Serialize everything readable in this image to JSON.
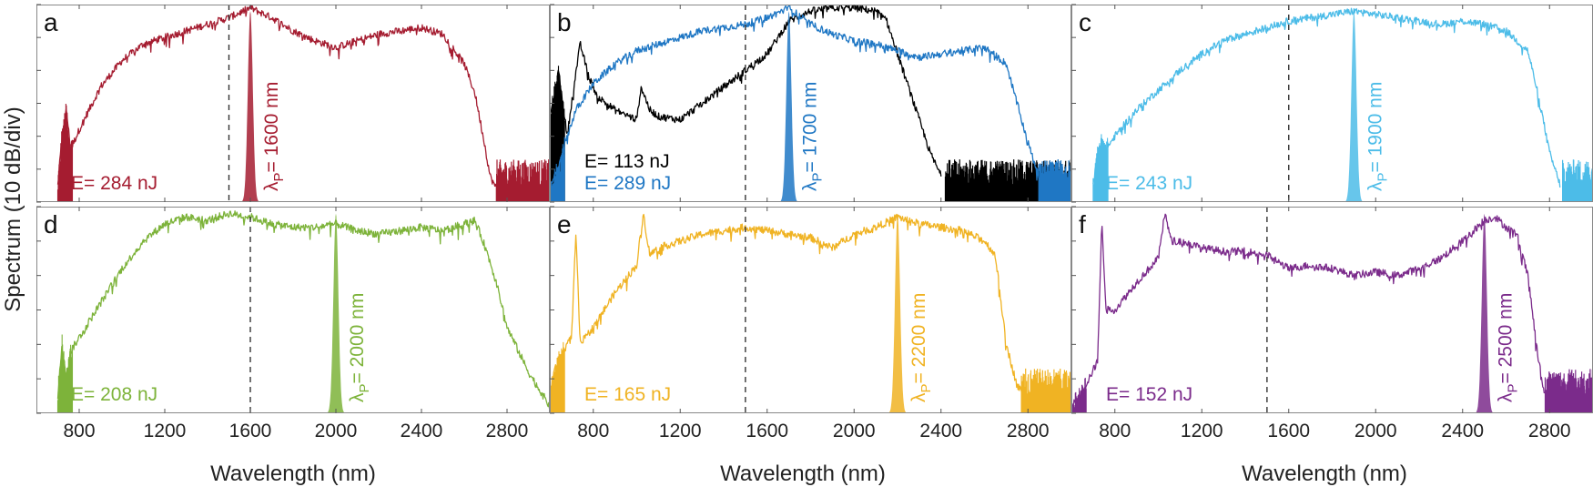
{
  "figure": {
    "ylabel": "Spectrum (10 dB/div)",
    "xlabel": "Wavelength (nm)"
  },
  "chart_data": [
    {
      "type": "line",
      "panel": "a",
      "color": "#a51c30",
      "pump_nm": 1600,
      "pump_label_prefix": "λ",
      "pump_label_sub": "P",
      "pump_label_value": "= 1600 nm",
      "dashed_line_nm": 1500,
      "energy_labels": [
        {
          "text": "E= 284 nJ",
          "color": "#a51c30"
        }
      ],
      "xlim": [
        600,
        3000
      ],
      "xticks": [
        800,
        1200,
        1600,
        2000,
        2400,
        2800
      ],
      "ylim": [
        -60,
        0
      ],
      "series": [
        {
          "name": "E= 284 nJ",
          "color": "#a51c30",
          "noise_floor_from_nm": 2750,
          "x": [
            700,
            720,
            740,
            760,
            800,
            900,
            1000,
            1100,
            1200,
            1300,
            1400,
            1500,
            1600,
            1700,
            1800,
            1900,
            2000,
            2100,
            2200,
            2300,
            2400,
            2500,
            2600,
            2650,
            2700,
            2720,
            2750
          ],
          "y": [
            -55,
            -40,
            -32,
            -44,
            -38,
            -25,
            -17,
            -12,
            -10,
            -8,
            -6,
            -4,
            -1,
            -4,
            -8,
            -11,
            -13,
            -11,
            -9,
            -8,
            -7,
            -9,
            -18,
            -27,
            -44,
            -52,
            -56
          ]
        }
      ]
    },
    {
      "type": "line",
      "panel": "b",
      "color": "#1f77c4",
      "pump_nm": 1700,
      "pump_label_prefix": "λ",
      "pump_label_sub": "P",
      "pump_label_value": "= 1700 nm",
      "dashed_line_nm": 1500,
      "energy_labels": [
        {
          "text": "E= 113 nJ",
          "color": "#000000"
        },
        {
          "text": "E= 289 nJ",
          "color": "#1f77c4"
        }
      ],
      "xlim": [
        600,
        3000
      ],
      "xticks": [
        800,
        1200,
        1600,
        2000,
        2400,
        2800
      ],
      "ylim": [
        -60,
        0
      ],
      "series": [
        {
          "name": "E= 113 nJ",
          "color": "#000000",
          "noise_floor_from_nm": 2420,
          "x": [
            600,
            640,
            680,
            710,
            740,
            780,
            820,
            900,
            1000,
            1020,
            1060,
            1100,
            1200,
            1300,
            1400,
            1500,
            1600,
            1700,
            1800,
            1900,
            2000,
            2100,
            2150,
            2200,
            2250,
            2300,
            2350,
            2400
          ],
          "y": [
            -35,
            -20,
            -40,
            -25,
            -12,
            -22,
            -28,
            -32,
            -35,
            -25,
            -32,
            -34,
            -35,
            -30,
            -25,
            -20,
            -15,
            -5,
            -2,
            -1,
            -1,
            -2,
            -5,
            -15,
            -25,
            -35,
            -45,
            -52
          ]
        },
        {
          "name": "E= 289 nJ",
          "color": "#1f77c4",
          "noise_floor_from_nm": 2850,
          "x": [
            600,
            640,
            680,
            720,
            760,
            800,
            900,
            1000,
            1100,
            1200,
            1300,
            1400,
            1500,
            1600,
            1700,
            1800,
            1900,
            2000,
            2100,
            2200,
            2300,
            2400,
            2500,
            2600,
            2700,
            2750,
            2800,
            2850
          ],
          "y": [
            -55,
            -50,
            -40,
            -32,
            -28,
            -24,
            -18,
            -14,
            -12,
            -10,
            -8,
            -7,
            -6,
            -4,
            -1,
            -6,
            -9,
            -11,
            -12,
            -14,
            -16,
            -15,
            -14,
            -13,
            -18,
            -30,
            -42,
            -52
          ]
        }
      ]
    },
    {
      "type": "line",
      "panel": "c",
      "color": "#4cbce8",
      "pump_nm": 1900,
      "pump_label_prefix": "λ",
      "pump_label_sub": "P",
      "pump_label_value": "= 1900 nm",
      "dashed_line_nm": 1600,
      "energy_labels": [
        {
          "text": "E= 243 nJ",
          "color": "#4cbce8"
        }
      ],
      "xlim": [
        600,
        3000
      ],
      "xticks": [
        800,
        1200,
        1600,
        2000,
        2400,
        2800
      ],
      "ylim": [
        -60,
        0
      ],
      "series": [
        {
          "name": "E= 243 nJ",
          "color": "#4cbce8",
          "noise_floor_from_nm": 2860,
          "x": [
            700,
            720,
            740,
            760,
            800,
            900,
            1000,
            1100,
            1200,
            1300,
            1400,
            1500,
            1600,
            1700,
            1800,
            1900,
            2000,
            2100,
            2200,
            2300,
            2400,
            2500,
            2600,
            2700,
            2750,
            2800,
            2850
          ],
          "y": [
            -55,
            -45,
            -42,
            -44,
            -40,
            -32,
            -26,
            -20,
            -15,
            -11,
            -9,
            -7,
            -5,
            -4,
            -3,
            -2,
            -3,
            -4,
            -5,
            -6,
            -5,
            -6,
            -8,
            -14,
            -28,
            -45,
            -55
          ]
        }
      ]
    },
    {
      "type": "line",
      "panel": "d",
      "color": "#7db33a",
      "pump_nm": 2000,
      "pump_label_prefix": "λ",
      "pump_label_sub": "P",
      "pump_label_value": "= 2000 nm",
      "dashed_line_nm": 1600,
      "energy_labels": [
        {
          "text": "E= 208 nJ",
          "color": "#7db33a"
        }
      ],
      "xlim": [
        600,
        3000
      ],
      "xticks": [
        800,
        1200,
        1600,
        2000,
        2400,
        2800
      ],
      "ylim": [
        -60,
        0
      ],
      "series": [
        {
          "name": "E= 208 nJ",
          "color": "#7db33a",
          "x": [
            700,
            720,
            740,
            760,
            800,
            900,
            1000,
            1100,
            1200,
            1300,
            1400,
            1500,
            1600,
            1700,
            1800,
            1900,
            2000,
            2100,
            2200,
            2300,
            2400,
            2500,
            2600,
            2650,
            2700,
            2750,
            2800,
            2900,
            3000
          ],
          "y": [
            -55,
            -40,
            -50,
            -42,
            -38,
            -28,
            -18,
            -10,
            -5,
            -3,
            -4,
            -2,
            -3,
            -5,
            -6,
            -6,
            -5,
            -7,
            -8,
            -7,
            -6,
            -7,
            -5,
            -4,
            -12,
            -22,
            -35,
            -48,
            -58
          ]
        }
      ]
    },
    {
      "type": "line",
      "panel": "e",
      "color": "#f0b323",
      "pump_nm": 2200,
      "pump_label_prefix": "λ",
      "pump_label_sub": "P",
      "pump_label_value": "= 2200 nm",
      "dashed_line_nm": 1500,
      "energy_labels": [
        {
          "text": "E= 165 nJ",
          "color": "#f0b323"
        }
      ],
      "xlim": [
        600,
        3000
      ],
      "xticks": [
        800,
        1200,
        1600,
        2000,
        2400,
        2800
      ],
      "ylim": [
        -60,
        0
      ],
      "series": [
        {
          "name": "E= 165 nJ",
          "color": "#f0b323",
          "noise_floor_from_nm": 2770,
          "x": [
            600,
            620,
            660,
            700,
            720,
            740,
            800,
            900,
            1000,
            1030,
            1060,
            1100,
            1200,
            1300,
            1400,
            1500,
            1600,
            1700,
            1800,
            1900,
            2000,
            2100,
            2200,
            2300,
            2400,
            2500,
            2600,
            2650,
            2700,
            2750,
            2800
          ],
          "y": [
            -55,
            -48,
            -42,
            -38,
            -8,
            -40,
            -35,
            -25,
            -17,
            -2,
            -14,
            -12,
            -10,
            -8,
            -7,
            -6,
            -7,
            -8,
            -9,
            -12,
            -8,
            -6,
            -3,
            -5,
            -6,
            -7,
            -10,
            -14,
            -40,
            -52,
            -56
          ]
        }
      ]
    },
    {
      "type": "line",
      "panel": "f",
      "color": "#7b2b8b",
      "pump_nm": 2500,
      "pump_label_prefix": "λ",
      "pump_label_sub": "P",
      "pump_label_value": "= 2500 nm",
      "dashed_line_nm": 1500,
      "energy_labels": [
        {
          "text": "E= 152 nJ",
          "color": "#7b2b8b"
        }
      ],
      "xlim": [
        600,
        3000
      ],
      "xticks": [
        800,
        1200,
        1600,
        2000,
        2400,
        2800
      ],
      "ylim": [
        -60,
        0
      ],
      "series": [
        {
          "name": "E= 152 nJ",
          "color": "#7b2b8b",
          "noise_floor_from_nm": 2780,
          "x": [
            600,
            640,
            680,
            720,
            740,
            760,
            800,
            900,
            1000,
            1030,
            1060,
            1100,
            1200,
            1300,
            1400,
            1500,
            1600,
            1700,
            1800,
            1900,
            2000,
            2100,
            2200,
            2300,
            2400,
            2500,
            2550,
            2600,
            2650,
            2700,
            2750,
            2780
          ],
          "y": [
            -58,
            -55,
            -50,
            -45,
            -5,
            -30,
            -30,
            -22,
            -15,
            -2,
            -10,
            -10,
            -12,
            -13,
            -13,
            -14,
            -18,
            -17,
            -18,
            -20,
            -19,
            -20,
            -18,
            -15,
            -10,
            -4,
            -3,
            -6,
            -8,
            -20,
            -45,
            -55
          ]
        }
      ]
    }
  ]
}
